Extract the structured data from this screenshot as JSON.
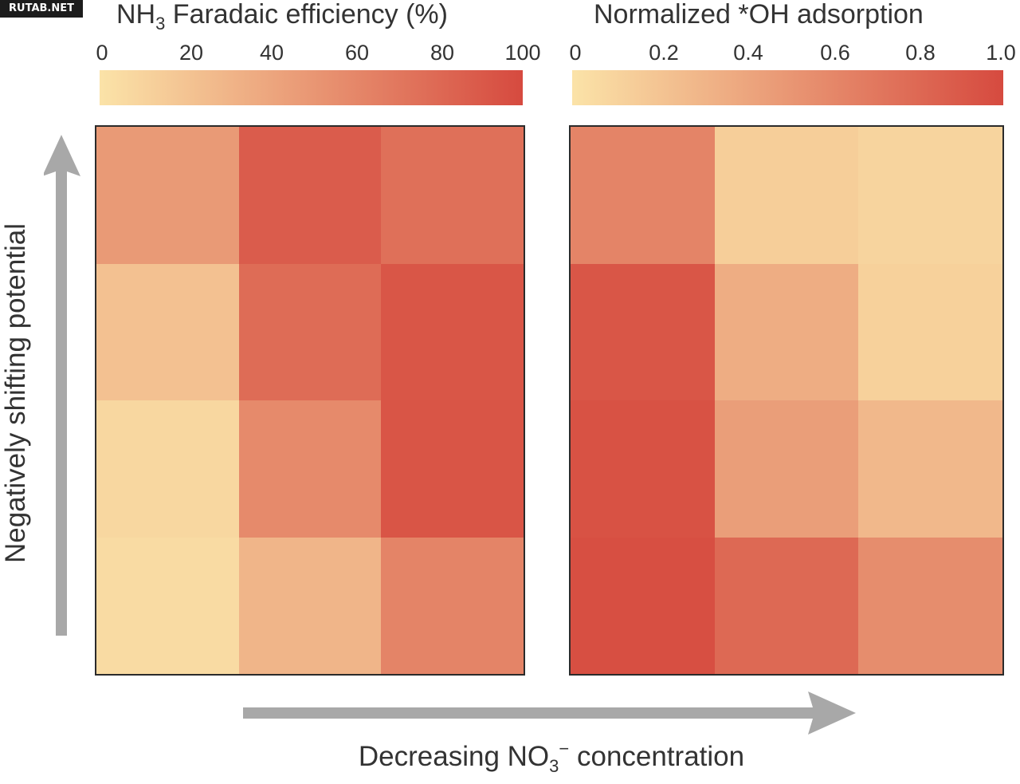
{
  "watermark": "RUTAB.NET",
  "chart_data": [
    {
      "type": "heatmap",
      "title_parts": [
        "NH",
        "3",
        " Faradaic efficiency (%)"
      ],
      "colorbar": {
        "ticks": [
          "0",
          "20",
          "40",
          "60",
          "80",
          "100"
        ],
        "range": [
          0,
          100
        ],
        "colors": [
          "#fbe3a8",
          "#d64a3f"
        ]
      },
      "rows": 4,
      "cols": 3,
      "values_top_to_bottom": [
        [
          48,
          88,
          75
        ],
        [
          22,
          78,
          92
        ],
        [
          8,
          58,
          93
        ],
        [
          5,
          30,
          62
        ]
      ]
    },
    {
      "type": "heatmap",
      "title": "Normalized *OH adsorption",
      "colorbar": {
        "ticks": [
          "0",
          "0.2",
          "0.4",
          "0.6",
          "0.8",
          "1.0"
        ],
        "range": [
          0,
          1
        ],
        "colors": [
          "#fbe3a8",
          "#d64a3f"
        ]
      },
      "rows": 4,
      "cols": 3,
      "values_top_to_bottom": [
        [
          0.62,
          0.14,
          0.1
        ],
        [
          0.92,
          0.35,
          0.12
        ],
        [
          0.95,
          0.45,
          0.28
        ],
        [
          0.97,
          0.8,
          0.56
        ]
      ]
    }
  ],
  "axes": {
    "y_label": "Negatively shifting potential",
    "x_label_parts": [
      "Decreasing NO",
      "3",
      "−",
      " concentration"
    ]
  },
  "colors": {
    "arrow": "#a8a8a8",
    "border": "#2b2b2b",
    "text": "#333333"
  }
}
